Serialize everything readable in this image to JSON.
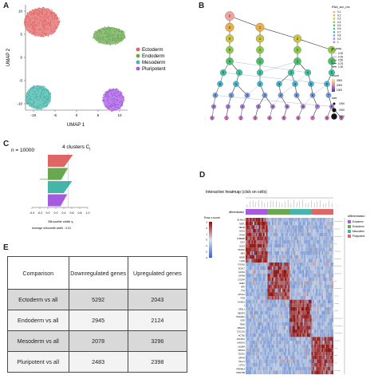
{
  "panels": {
    "a": {
      "letter": "A",
      "xlabel": "UMAP 1",
      "ylabel": "UMAP 2",
      "xticks": [
        "-10",
        "-5",
        "0",
        "5",
        "10"
      ],
      "yticks": [
        "10",
        "5",
        "0",
        "-5",
        "-10"
      ],
      "legend": [
        {
          "label": "Ectoderm",
          "color": "#e06666"
        },
        {
          "label": "Endoderm",
          "color": "#6aa84f"
        },
        {
          "label": "Mesoderm",
          "color": "#45b5aa"
        },
        {
          "label": "Pluripotent",
          "color": "#a55be0"
        }
      ]
    },
    "b": {
      "letter": "B",
      "legend_res_title": "RNA_snn_res.",
      "res_values": [
        "0.1",
        "0.2",
        "0.3",
        "0.4",
        "0.5",
        "0.6",
        "0.7",
        "0.8",
        "0.9",
        "1"
      ],
      "legend_inprop_title": "in_prop",
      "inprop_values": [
        "0.00",
        "0.25",
        "0.50",
        "0.75",
        "1.00"
      ],
      "legend_count_title": "count",
      "count_values": [
        "3000",
        "2000",
        "1000"
      ],
      "legend_size_title": "size",
      "size_values": [
        "1000",
        "2000",
        "3000"
      ]
    },
    "c": {
      "letter": "C",
      "n_label": "n = 10000",
      "clusters_label": "4 clusters C",
      "clusters_sub": "j",
      "xticks": [
        "-0.4",
        "-0.2",
        "0.0",
        "0.2",
        "0.4",
        "0.6",
        "0.8",
        "1.0"
      ],
      "xlabel": "Silhouette width s",
      "xlabel_sub": "i",
      "avg_text": "Average silhouette width : 0.51",
      "bar_colors": [
        "#e06666",
        "#6aa84f",
        "#45b5aa",
        "#a55be0"
      ]
    },
    "d": {
      "letter": "D",
      "title": "Interactive heatmap (click on cells)",
      "colorbar_label": "Row z-score",
      "colorbar_ticks": [
        "3",
        "2",
        "1",
        "0",
        "-1",
        "-2",
        "-3"
      ],
      "diff_label": "differentiation",
      "legend_title": "differentiation",
      "legend": [
        {
          "label": "Ectoderm",
          "color": "#a55be0"
        },
        {
          "label": "Endoderm",
          "color": "#6aa84f"
        },
        {
          "label": "Mesoderm",
          "color": "#45b5aa"
        },
        {
          "label": "Pluripotent",
          "color": "#e06666"
        }
      ],
      "genes": [
        "ELAVL3",
        "NEFL",
        "NEFM",
        "SOX1",
        "PAX6",
        "TUBB2B",
        "DCX",
        "SOX2",
        "STMN2",
        "NES",
        "HES5",
        "LHX2",
        "FOXA2",
        "SOX17",
        "GATA4",
        "GATA6",
        "CXCR4",
        "HHEX",
        "AFP",
        "TTR",
        "APOA1",
        "FGB",
        "HAND1",
        "T",
        "MIXL1",
        "MESP1",
        "PDGFRA",
        "KDR",
        "TBX6",
        "MSGN1",
        "COL1A1",
        "ACTA2",
        "POU5F1",
        "NANOG",
        "LIN28A",
        "DPPA4",
        "TDGF1",
        "ZFP42",
        "SALL4",
        "L1TD1",
        "PRDM14",
        "DNMT3B"
      ]
    },
    "e": {
      "letter": "E",
      "headers": [
        "Comparison",
        "Downregulated genes",
        "Upregulated genes"
      ],
      "rows": [
        {
          "comparison": "Ectoderm  vs all",
          "down": "5292",
          "up": "2043"
        },
        {
          "comparison": "Endoderm  vs all",
          "down": "2945",
          "up": "2124"
        },
        {
          "comparison": "Mesoderm  vs all",
          "down": "2078",
          "up": "3296"
        },
        {
          "comparison": "Pluripotent vs all",
          "down": "2483",
          "up": "2398"
        }
      ]
    }
  }
}
